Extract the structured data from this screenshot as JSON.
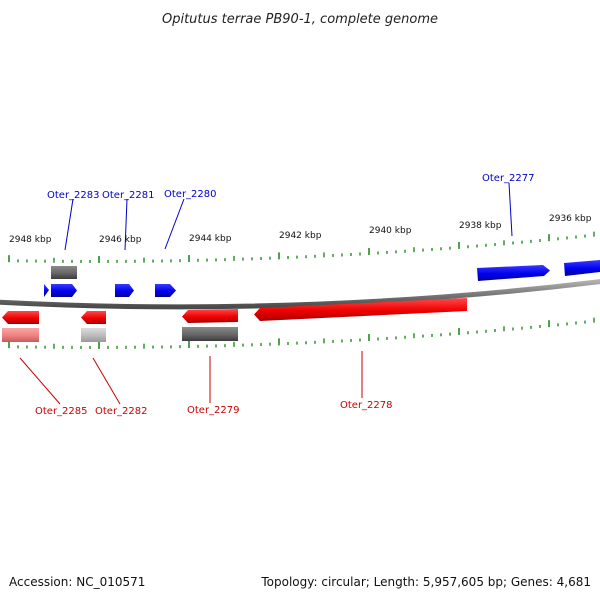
{
  "title": "Opitutus terrae PB90-1, complete genome",
  "footer": {
    "accession": "Accession: NC_010571",
    "summary": "Topology: circular; Length: 5,957,605 bp; Genes: 4,681"
  },
  "colors": {
    "forward_gene": "#0000ee",
    "reverse_gene": "#ee0000",
    "pseudo_gray": "#666666",
    "light_gray": "#bbbbbb",
    "light_red": "#f08080",
    "backbone": "#8a8a8a",
    "tick": "#228b22"
  },
  "scale_labels": [
    "2948 kbp",
    "2946 kbp",
    "2944 kbp",
    "2942 kbp",
    "2940 kbp",
    "2938 kbp",
    "2936 kbp"
  ],
  "gene_labels": {
    "forward": [
      "Oter_2283",
      "Oter_2281",
      "Oter_2280",
      "Oter_2277"
    ],
    "reverse": [
      "Oter_2285",
      "Oter_2282",
      "Oter_2279",
      "Oter_2278"
    ]
  }
}
